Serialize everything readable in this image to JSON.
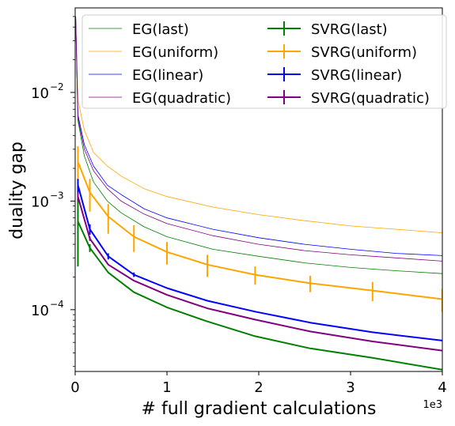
{
  "chart_data": {
    "type": "line",
    "xlabel": "# full gradient calculations",
    "ylabel": "duality gap",
    "x_offset_label": "1e3",
    "xscale": "linear",
    "yscale": "log",
    "xlim": [
      0,
      4
    ],
    "ylim": [
      2.7e-05,
      0.06
    ],
    "x_ticks": [
      0,
      1,
      2,
      3,
      4
    ],
    "x_tick_labels": [
      "0",
      "1",
      "2",
      "3",
      "4"
    ],
    "y_ticks": [
      0.0001,
      0.001,
      0.01
    ],
    "y_tick_labels": [
      "10",
      "10",
      "10"
    ],
    "y_tick_exponents": [
      "−4",
      "−3",
      "−2"
    ],
    "grid": false,
    "legend_placement": "top-right",
    "legend_columns": 2,
    "series": [
      {
        "name": "EG(last)",
        "style": "thin",
        "color": "#008000",
        "x": [
          0.005,
          0.03,
          0.1,
          0.2,
          0.35,
          0.5,
          0.75,
          1.0,
          1.5,
          2.0,
          2.5,
          3.0,
          3.5,
          4.0
        ],
        "y": [
          0.05,
          0.0055,
          0.0026,
          0.0015,
          0.001,
          0.00078,
          0.00058,
          0.00047,
          0.00036,
          0.00031,
          0.00027,
          0.000245,
          0.000228,
          0.000215
        ]
      },
      {
        "name": "EG(uniform)",
        "style": "thin",
        "color": "#ffa500",
        "x": [
          0.005,
          0.03,
          0.1,
          0.2,
          0.35,
          0.5,
          0.75,
          1.0,
          1.5,
          2.0,
          2.5,
          3.0,
          3.5,
          4.0
        ],
        "y": [
          0.05,
          0.0085,
          0.0045,
          0.0028,
          0.0021,
          0.0017,
          0.0013,
          0.0011,
          0.00088,
          0.00075,
          0.00066,
          0.00059,
          0.00055,
          0.00051
        ]
      },
      {
        "name": "EG(linear)",
        "style": "thin",
        "color": "#0000ff",
        "x": [
          0.005,
          0.03,
          0.1,
          0.2,
          0.35,
          0.5,
          0.75,
          1.0,
          1.5,
          2.0,
          2.5,
          3.0,
          3.5,
          4.0
        ],
        "y": [
          0.05,
          0.0062,
          0.0033,
          0.0021,
          0.0014,
          0.00115,
          0.00085,
          0.0007,
          0.00055,
          0.00046,
          0.0004,
          0.00036,
          0.00033,
          0.000315
        ]
      },
      {
        "name": "EG(quadratic)",
        "style": "thin",
        "color": "#800080",
        "x": [
          0.005,
          0.03,
          0.1,
          0.2,
          0.35,
          0.5,
          0.75,
          1.0,
          1.5,
          2.0,
          2.5,
          3.0,
          3.5,
          4.0
        ],
        "y": [
          0.05,
          0.0058,
          0.003,
          0.0019,
          0.0013,
          0.001,
          0.00076,
          0.00062,
          0.00048,
          0.0004,
          0.00035,
          0.00032,
          0.0003,
          0.00028
        ]
      },
      {
        "name": "SVRG(last)",
        "style": "thick",
        "color": "#008000",
        "x": [
          0.03,
          0.16,
          0.36,
          0.64,
          1.0,
          1.44,
          1.96,
          2.56,
          3.24,
          4.0
        ],
        "y": [
          0.00065,
          0.00037,
          0.00022,
          0.000145,
          0.000105,
          7.8e-05,
          5.7e-05,
          4.4e-05,
          3.6e-05,
          2.8e-05
        ],
        "err": [
          0.0004,
          3e-05,
          0.0,
          0.0,
          0.0,
          0.0,
          0.0,
          0.0,
          0.0,
          0.0
        ]
      },
      {
        "name": "SVRG(uniform)",
        "style": "thick",
        "color": "#ffa500",
        "x": [
          0.03,
          0.16,
          0.36,
          0.64,
          1.0,
          1.44,
          1.96,
          2.56,
          3.24,
          4.0
        ],
        "y": [
          0.0023,
          0.0012,
          0.00072,
          0.00047,
          0.00034,
          0.00026,
          0.00021,
          0.000175,
          0.00015,
          0.000125
        ],
        "err": [
          0.0009,
          0.0004,
          0.00022,
          0.00013,
          8e-05,
          6e-05,
          4e-05,
          3e-05,
          3e-05,
          3e-05
        ]
      },
      {
        "name": "SVRG(linear)",
        "style": "thick",
        "color": "#0000ff",
        "x": [
          0.03,
          0.16,
          0.36,
          0.64,
          1.0,
          1.44,
          1.96,
          2.56,
          3.24,
          4.0
        ],
        "y": [
          0.0014,
          0.00055,
          0.00031,
          0.00021,
          0.000158,
          0.000121,
          9.6e-05,
          7.6e-05,
          6.2e-05,
          5.2e-05
        ],
        "err": [
          0.0002,
          6e-05,
          2e-05,
          1e-05,
          0.0,
          0.0,
          0.0,
          0.0,
          0.0,
          0.0
        ]
      },
      {
        "name": "SVRG(quadratic)",
        "style": "thick",
        "color": "#800080",
        "x": [
          0.03,
          0.16,
          0.36,
          0.64,
          1.0,
          1.44,
          1.96,
          2.56,
          3.24,
          4.0
        ],
        "y": [
          0.0011,
          0.00045,
          0.00026,
          0.000185,
          0.000137,
          0.000103,
          8.1e-05,
          6.3e-05,
          5.1e-05,
          4.2e-05
        ],
        "err": [
          0.0001,
          2e-05,
          0.0,
          0.0,
          0.0,
          0.0,
          0.0,
          0.0,
          0.0,
          0.0
        ]
      }
    ]
  }
}
